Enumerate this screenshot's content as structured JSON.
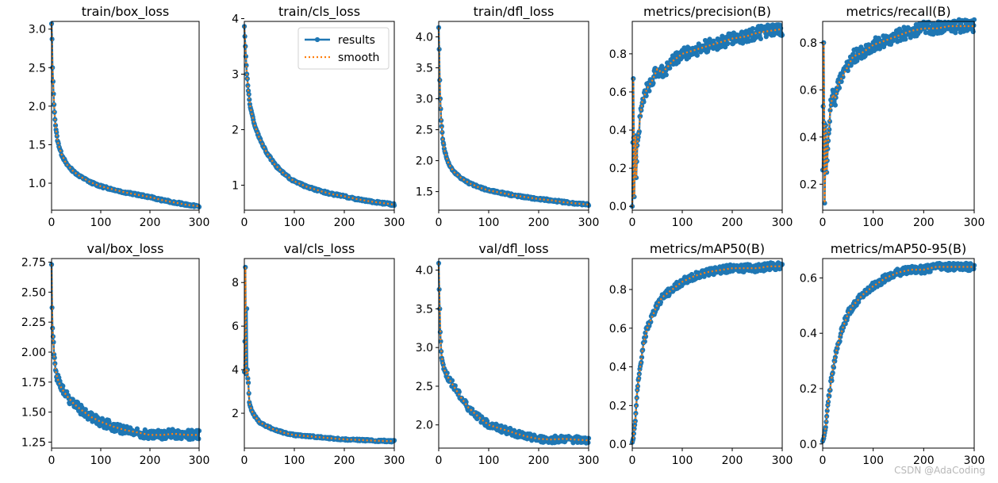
{
  "watermark": "CSDN @AdaCoding",
  "colors": {
    "results": "#1f77b4",
    "smooth": "#ff7f0e",
    "axes": "#000000"
  },
  "chart_data": [
    {
      "type": "line",
      "title": "train/box_loss",
      "xlim": [
        0,
        300
      ],
      "ylim": [
        0.65,
        3.1
      ],
      "xticks": [
        "0",
        "100",
        "200",
        "300"
      ],
      "yticks": [
        "1.0",
        "1.5",
        "2.0",
        "2.5",
        "3.0"
      ],
      "x": [
        0,
        1,
        2,
        3,
        5,
        8,
        12,
        20,
        30,
        45,
        60,
        80,
        100,
        125,
        150,
        175,
        200,
        225,
        250,
        275,
        300
      ],
      "series": [
        {
          "name": "results",
          "values": [
            3.07,
            2.87,
            2.5,
            2.32,
            2.02,
            1.75,
            1.55,
            1.38,
            1.25,
            1.15,
            1.08,
            1.01,
            0.96,
            0.92,
            0.88,
            0.85,
            0.82,
            0.78,
            0.75,
            0.72,
            0.7
          ]
        }
      ]
    },
    {
      "type": "line",
      "title": "train/cls_loss",
      "xlim": [
        0,
        300
      ],
      "ylim": [
        0.55,
        3.95
      ],
      "xticks": [
        "0",
        "100",
        "200",
        "300"
      ],
      "yticks": [
        "1",
        "2",
        "3",
        "4"
      ],
      "legend": {
        "placement": "top-right",
        "entries": [
          "results",
          "smooth"
        ]
      },
      "x": [
        0,
        1,
        2,
        3,
        5,
        8,
        12,
        20,
        30,
        45,
        60,
        80,
        100,
        125,
        150,
        175,
        200,
        225,
        250,
        275,
        300
      ],
      "series": [
        {
          "name": "results",
          "values": [
            3.86,
            3.68,
            3.5,
            3.32,
            3.0,
            2.7,
            2.4,
            2.1,
            1.85,
            1.58,
            1.38,
            1.2,
            1.07,
            0.97,
            0.9,
            0.84,
            0.8,
            0.75,
            0.71,
            0.68,
            0.65
          ]
        }
      ]
    },
    {
      "type": "line",
      "title": "train/dfl_loss",
      "xlim": [
        0,
        300
      ],
      "ylim": [
        1.2,
        4.25
      ],
      "xticks": [
        "0",
        "100",
        "200",
        "300"
      ],
      "yticks": [
        "1.5",
        "2.0",
        "2.5",
        "3.0",
        "3.5",
        "4.0"
      ],
      "x": [
        0,
        1,
        2,
        3,
        5,
        8,
        12,
        20,
        30,
        45,
        60,
        80,
        100,
        125,
        150,
        175,
        200,
        225,
        250,
        275,
        300
      ],
      "series": [
        {
          "name": "results",
          "values": [
            4.15,
            3.8,
            3.3,
            3.0,
            2.65,
            2.35,
            2.15,
            1.95,
            1.82,
            1.72,
            1.64,
            1.57,
            1.52,
            1.48,
            1.44,
            1.41,
            1.38,
            1.36,
            1.33,
            1.31,
            1.29
          ]
        }
      ]
    },
    {
      "type": "line",
      "title": "metrics/precision(B)",
      "xlim": [
        0,
        300
      ],
      "ylim": [
        -0.02,
        0.97
      ],
      "xticks": [
        "0",
        "100",
        "200",
        "300"
      ],
      "yticks": [
        "0.0",
        "0.2",
        "0.4",
        "0.6",
        "0.8"
      ],
      "x": [
        0,
        2,
        4,
        6,
        8,
        10,
        15,
        20,
        30,
        40,
        50,
        60,
        80,
        100,
        125,
        150,
        175,
        200,
        225,
        250,
        275,
        300
      ],
      "series": [
        {
          "name": "results",
          "values": [
            0.0,
            0.67,
            0.05,
            0.37,
            0.15,
            0.32,
            0.45,
            0.55,
            0.62,
            0.66,
            0.72,
            0.7,
            0.76,
            0.8,
            0.82,
            0.84,
            0.86,
            0.88,
            0.89,
            0.91,
            0.92,
            0.93
          ]
        }
      ]
    },
    {
      "type": "line",
      "title": "metrics/recall(B)",
      "xlim": [
        0,
        300
      ],
      "ylim": [
        0.09,
        0.89
      ],
      "xticks": [
        "0",
        "100",
        "200",
        "300"
      ],
      "yticks": [
        "0.2",
        "0.4",
        "0.6",
        "0.8"
      ],
      "x": [
        0,
        2,
        4,
        6,
        8,
        10,
        15,
        20,
        25,
        30,
        40,
        50,
        60,
        80,
        100,
        125,
        150,
        175,
        200,
        225,
        250,
        275,
        300
      ],
      "series": [
        {
          "name": "results",
          "values": [
            0.26,
            0.8,
            0.12,
            0.45,
            0.25,
            0.35,
            0.52,
            0.58,
            0.56,
            0.62,
            0.66,
            0.7,
            0.74,
            0.76,
            0.79,
            0.81,
            0.83,
            0.85,
            0.86,
            0.86,
            0.87,
            0.87,
            0.87
          ]
        }
      ]
    },
    {
      "type": "line",
      "title": "val/box_loss",
      "xlim": [
        0,
        300
      ],
      "ylim": [
        1.2,
        2.78
      ],
      "xticks": [
        "0",
        "100",
        "200",
        "300"
      ],
      "yticks": [
        "1.25",
        "1.50",
        "1.75",
        "2.00",
        "2.25",
        "2.50",
        "2.75"
      ],
      "x": [
        0,
        1,
        2,
        3,
        5,
        8,
        12,
        20,
        30,
        45,
        60,
        80,
        100,
        125,
        150,
        175,
        200,
        225,
        250,
        275,
        300
      ],
      "series": [
        {
          "name": "results",
          "values": [
            2.73,
            2.37,
            2.2,
            2.13,
            1.98,
            1.85,
            1.78,
            1.7,
            1.64,
            1.57,
            1.52,
            1.46,
            1.42,
            1.38,
            1.35,
            1.33,
            1.31,
            1.31,
            1.32,
            1.31,
            1.31
          ]
        }
      ]
    },
    {
      "type": "line",
      "title": "val/cls_loss",
      "xlim": [
        0,
        300
      ],
      "ylim": [
        0.4,
        9.1
      ],
      "xticks": [
        "0",
        "100",
        "200",
        "300"
      ],
      "yticks": [
        "2",
        "4",
        "6",
        "8"
      ],
      "x": [
        0,
        1,
        2,
        3,
        4,
        5,
        6,
        7,
        8,
        10,
        12,
        15,
        20,
        30,
        45,
        60,
        80,
        100,
        125,
        150,
        175,
        200,
        225,
        250,
        275,
        300
      ],
      "series": [
        {
          "name": "results",
          "values": [
            3.9,
            5.3,
            8.7,
            4.2,
            3.8,
            6.8,
            4.0,
            3.6,
            3.4,
            2.5,
            2.3,
            2.1,
            1.9,
            1.6,
            1.4,
            1.25,
            1.1,
            1.0,
            0.95,
            0.9,
            0.85,
            0.8,
            0.78,
            0.75,
            0.73,
            0.72
          ]
        }
      ]
    },
    {
      "type": "line",
      "title": "val/dfl_loss",
      "xlim": [
        0,
        300
      ],
      "ylim": [
        1.7,
        4.15
      ],
      "xticks": [
        "0",
        "100",
        "200",
        "300"
      ],
      "yticks": [
        "2.0",
        "2.5",
        "3.0",
        "3.5",
        "4.0"
      ],
      "x": [
        0,
        1,
        2,
        3,
        5,
        8,
        12,
        20,
        30,
        45,
        60,
        80,
        100,
        125,
        150,
        175,
        200,
        225,
        250,
        275,
        300
      ],
      "series": [
        {
          "name": "results",
          "values": [
            4.09,
            3.75,
            3.5,
            3.2,
            2.95,
            2.8,
            2.7,
            2.6,
            2.5,
            2.35,
            2.22,
            2.1,
            2.0,
            1.95,
            1.9,
            1.85,
            1.82,
            1.81,
            1.82,
            1.81,
            1.8
          ]
        }
      ]
    },
    {
      "type": "line",
      "title": "metrics/mAP50(B)",
      "xlim": [
        0,
        300
      ],
      "ylim": [
        -0.02,
        0.96
      ],
      "xticks": [
        "0",
        "100",
        "200",
        "300"
      ],
      "yticks": [
        "0.0",
        "0.2",
        "0.4",
        "0.6",
        "0.8"
      ],
      "x": [
        0,
        2,
        4,
        6,
        8,
        10,
        15,
        20,
        25,
        30,
        40,
        50,
        60,
        80,
        100,
        125,
        150,
        175,
        200,
        225,
        250,
        275,
        300
      ],
      "series": [
        {
          "name": "results",
          "values": [
            0.01,
            0.03,
            0.08,
            0.12,
            0.2,
            0.28,
            0.38,
            0.48,
            0.55,
            0.6,
            0.66,
            0.72,
            0.76,
            0.8,
            0.84,
            0.87,
            0.89,
            0.9,
            0.91,
            0.91,
            0.91,
            0.92,
            0.92
          ]
        }
      ]
    },
    {
      "type": "line",
      "title": "metrics/mAP50-95(B)",
      "xlim": [
        0,
        300
      ],
      "ylim": [
        -0.015,
        0.67
      ],
      "xticks": [
        "0",
        "100",
        "200",
        "300"
      ],
      "yticks": [
        "0.0",
        "0.2",
        "0.4",
        "0.6"
      ],
      "x": [
        0,
        2,
        4,
        6,
        8,
        10,
        15,
        20,
        25,
        30,
        40,
        50,
        60,
        80,
        100,
        125,
        150,
        175,
        200,
        225,
        250,
        275,
        300
      ],
      "series": [
        {
          "name": "results",
          "values": [
            0.01,
            0.02,
            0.04,
            0.06,
            0.1,
            0.14,
            0.2,
            0.27,
            0.32,
            0.36,
            0.42,
            0.47,
            0.5,
            0.54,
            0.57,
            0.6,
            0.62,
            0.63,
            0.63,
            0.64,
            0.64,
            0.64,
            0.64
          ]
        }
      ]
    }
  ]
}
